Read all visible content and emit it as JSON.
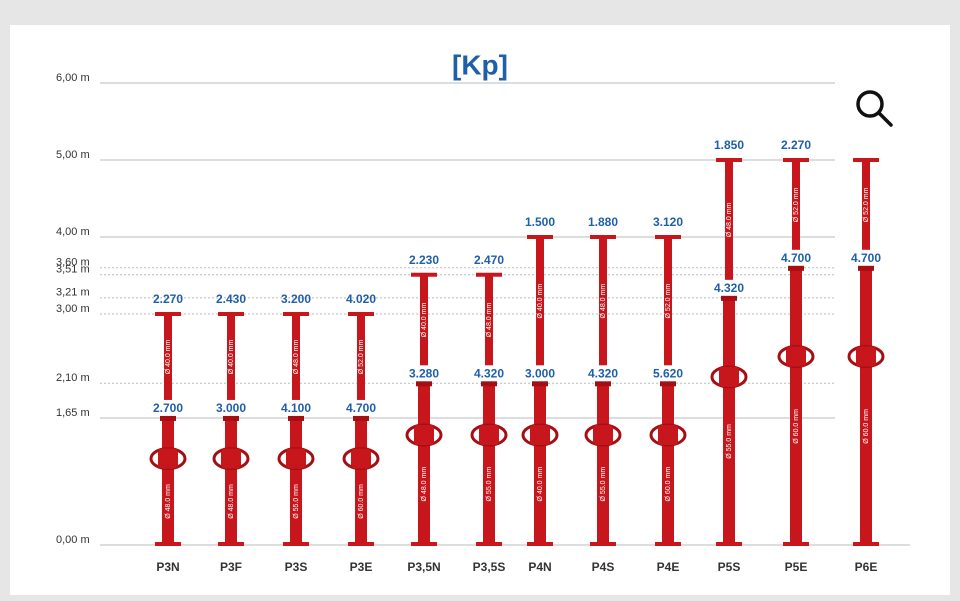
{
  "chart_data": {
    "type": "range",
    "title": "[Kp]",
    "ylim": [
      0,
      6
    ],
    "yticks": [
      {
        "value": 0,
        "label": "0,00 m"
      },
      {
        "value": 1.65,
        "label": "1,65 m"
      },
      {
        "value": 2.1,
        "label": "2,10 m"
      },
      {
        "value": 3,
        "label": "3,00 m"
      },
      {
        "value": 3.21,
        "label": "3,21 m"
      },
      {
        "value": 3.51,
        "label": "3,51 m"
      },
      {
        "value": 3.6,
        "label": "3,60 m"
      },
      {
        "value": 4,
        "label": "4,00 m"
      },
      {
        "value": 5,
        "label": "5,00 m"
      },
      {
        "value": 6,
        "label": "6,00 m"
      }
    ],
    "color": "#c8161d",
    "props": [
      {
        "name": "P3N",
        "max_height": 3,
        "min_height": 1.65,
        "top_load": "2.270",
        "bottom_load": "2.700",
        "upper_tube": "Ø 40.0 mm",
        "lower_tube": "Ø 48.0 mm"
      },
      {
        "name": "P3F",
        "max_height": 3,
        "min_height": 1.65,
        "top_load": "2.430",
        "bottom_load": "3.000",
        "upper_tube": "Ø 40.0 mm",
        "lower_tube": "Ø 48.0 mm"
      },
      {
        "name": "P3S",
        "max_height": 3,
        "min_height": 1.65,
        "top_load": "3.200",
        "bottom_load": "4.100",
        "upper_tube": "Ø 48.0 mm",
        "lower_tube": "Ø 55.0 mm"
      },
      {
        "name": "P3E",
        "max_height": 3,
        "min_height": 1.65,
        "top_load": "4.020",
        "bottom_load": "4.700",
        "upper_tube": "Ø 52.0 mm",
        "lower_tube": "Ø 60.0 mm"
      },
      {
        "name": "P3,5N",
        "max_height": 3.51,
        "min_height": 2.1,
        "top_load": "2.230",
        "bottom_load": "3.280",
        "upper_tube": "Ø 40.0 mm",
        "lower_tube": "Ø 48.0 mm"
      },
      {
        "name": "P3,5S",
        "max_height": 3.51,
        "min_height": 2.1,
        "top_load": "2.470",
        "bottom_load": "4.320",
        "upper_tube": "Ø 48.0 mm",
        "lower_tube": "Ø 55.0 mm"
      },
      {
        "name": "P4N",
        "max_height": 4,
        "min_height": 2.1,
        "top_load": "1.500",
        "bottom_load": "3.000",
        "upper_tube": "Ø 40.0 mm",
        "lower_tube": "Ø 40.0 mm"
      },
      {
        "name": "P4S",
        "max_height": 4,
        "min_height": 2.1,
        "top_load": "1.880",
        "bottom_load": "4.320",
        "upper_tube": "Ø 48.0 mm",
        "lower_tube": "Ø 55.0 mm"
      },
      {
        "name": "P4E",
        "max_height": 4,
        "min_height": 2.1,
        "top_load": "3.120",
        "bottom_load": "5.620",
        "upper_tube": "Ø 52.0 mm",
        "lower_tube": "Ø 60.0 mm"
      },
      {
        "name": "P5S",
        "max_height": 5,
        "min_height": 3.21,
        "top_load": "1.850",
        "bottom_load": "4.320",
        "upper_tube": "Ø 48.0 mm",
        "lower_tube": "Ø 55.0 mm"
      },
      {
        "name": "P5E",
        "max_height": 5,
        "min_height": 3.6,
        "top_load": "2.270",
        "bottom_load": "4.700",
        "upper_tube": "Ø 52.0 mm",
        "lower_tube": "Ø 60.0 mm"
      },
      {
        "name": "P6E",
        "max_height": 5,
        "min_height": 3.6,
        "bottom_load": "4.700",
        "upper_tube": "Ø 52.0 mm",
        "lower_tube": "Ø 60.0 mm"
      }
    ]
  }
}
